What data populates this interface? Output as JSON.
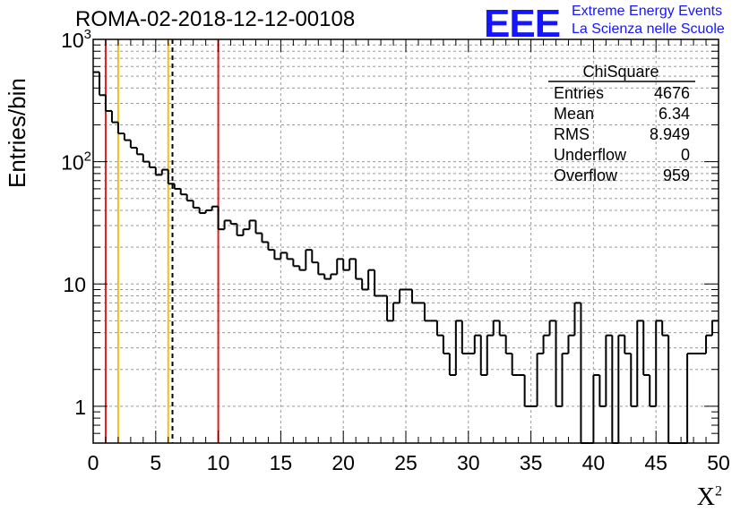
{
  "title": "ROMA-02-2018-12-12-00108",
  "logo": {
    "mark": "EEE",
    "line1": "Extreme Energy Events",
    "line2": "La Scienza nelle Scuole",
    "color": "#1515ff"
  },
  "stats_box": {
    "header": "ChiSquare",
    "rows": [
      {
        "label": "Entries",
        "value": "4676"
      },
      {
        "label": "Mean",
        "value": "6.34"
      },
      {
        "label": "RMS",
        "value": "8.949"
      },
      {
        "label": "Underflow",
        "value": "0"
      },
      {
        "label": "Overflow",
        "value": "959"
      }
    ]
  },
  "chart_data": {
    "type": "histogram",
    "xlabel": "X",
    "xlabel_superscript": "2",
    "ylabel": "Entries/bin",
    "xlim": [
      0,
      50
    ],
    "ylim": [
      0.5,
      1000
    ],
    "yscale": "log",
    "grid": true,
    "bin_width": 0.5,
    "x_ticks": [
      "0",
      "5",
      "10",
      "15",
      "20",
      "25",
      "30",
      "35",
      "40",
      "45",
      "50"
    ],
    "y_ticks": [
      {
        "base": "1",
        "exp": ""
      },
      {
        "base": "10",
        "exp": ""
      },
      {
        "base": "10",
        "exp": "2"
      },
      {
        "base": "10",
        "exp": "3"
      }
    ],
    "values": [
      540,
      350,
      260,
      210,
      170,
      150,
      130,
      115,
      100,
      90,
      78,
      86,
      66,
      60,
      54,
      48,
      42,
      38,
      40,
      43,
      28,
      33,
      31,
      25,
      28,
      33,
      26,
      22,
      19,
      16,
      18,
      16,
      14,
      13,
      19,
      15,
      12,
      11,
      12,
      16,
      13,
      16,
      11,
      9,
      13,
      8,
      8,
      5,
      7,
      9,
      9,
      7,
      7,
      5,
      5,
      3.8,
      2.7,
      1.8,
      5,
      2.7,
      2.7,
      3.8,
      1.8,
      3.8,
      5,
      3.8,
      2.7,
      1.8,
      1.8,
      1,
      1,
      2.7,
      3.8,
      5,
      1,
      2.7,
      3.8,
      7,
      0.5,
      0.5,
      1.8,
      1,
      3.8,
      0.5,
      3.8,
      2.7,
      1,
      5,
      1.8,
      1,
      5,
      3.8,
      0.5,
      0.5,
      0.5,
      2.7,
      2.7,
      2.7,
      3.8,
      5
    ],
    "vertical_lines": [
      {
        "x": 1,
        "color": "#e02020",
        "style": "solid"
      },
      {
        "x": 2,
        "color": "#f0c020",
        "style": "solid"
      },
      {
        "x": 6,
        "color": "#f0c020",
        "style": "solid"
      },
      {
        "x": 6.34,
        "color": "#000000",
        "style": "dashed"
      },
      {
        "x": 10,
        "color": "#e02020",
        "style": "solid"
      }
    ]
  }
}
